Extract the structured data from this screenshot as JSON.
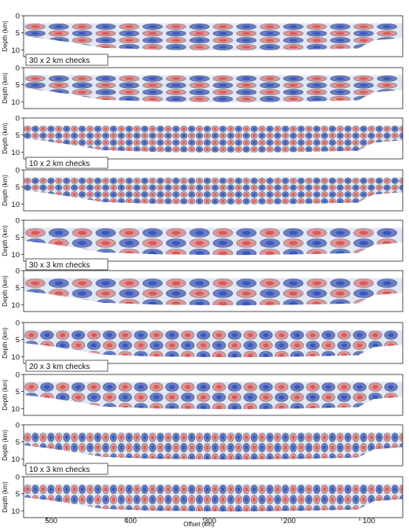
{
  "figure": {
    "y_axis_title": "Depth (km)",
    "x_axis_title": "Offset (km)",
    "y_ticks": [
      "0",
      "5",
      "10"
    ],
    "x_ticks": [
      "500",
      "400",
      "300",
      "200",
      "100"
    ],
    "colors": {
      "positive": "#d9534f",
      "negative": "#3653b8",
      "mask": "#c9d3ec",
      "contour": "#1a1a1a"
    },
    "x_range": [
      530,
      45
    ],
    "y_range": [
      0,
      12
    ],
    "groups": [
      {
        "label": "30 x 2 km checks",
        "check_size_km": [
          30,
          2
        ]
      },
      {
        "label": "10 x 2 km checks",
        "check_size_km": [
          10,
          2
        ]
      },
      {
        "label": "30 x 3 km checks",
        "check_size_km": [
          30,
          3
        ]
      },
      {
        "label": "20 x 3 km checks",
        "check_size_km": [
          20,
          3
        ]
      },
      {
        "label": "10 x 3 km checks",
        "check_size_km": [
          10,
          3
        ]
      }
    ]
  }
}
